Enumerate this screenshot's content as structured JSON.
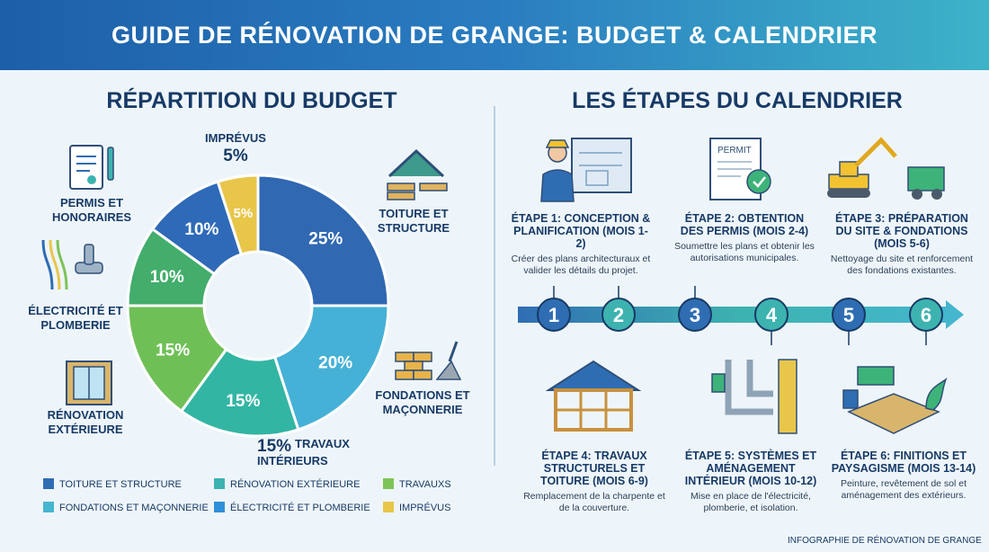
{
  "header": {
    "title": "GUIDE DE RÉNOVATION DE GRANGE: BUDGET & CALENDRIER"
  },
  "budget": {
    "title": "RÉPARTITION DU BUDGET",
    "slice_labels": {
      "toiture": "TOITURE ET STRUCTURE",
      "fondations": "FONDATIONS ET MAÇONNERIE",
      "travaux": "TRAVAUX INTÉRIEURS",
      "exterieure": "RÉNOVATION EXTÉRIEURE",
      "electricite": "ÉLECTRICITÉ ET PLOMBERIE",
      "permis": "PERMIS ET HONORAIRES",
      "imprevus": "IMPRÉVUS"
    },
    "outer_pct": {
      "imprevus": "5%",
      "travaux": "15%"
    },
    "legend": [
      {
        "label": "TOITURE ET STRUCTURE",
        "color": "#2f6db3"
      },
      {
        "label": "RÉNOVATION EXTÉRIEURE",
        "color": "#3db3b0"
      },
      {
        "label": "TRAVAUXS",
        "color": "#7cc456"
      },
      {
        "label": "FONDATIONS ET MAÇONNERIE",
        "color": "#45b6cf"
      },
      {
        "label": "ÉLECTRICITÉ ET PLOMBERIE",
        "color": "#2f8fd8"
      },
      {
        "label": "IMPRÉVUS",
        "color": "#e8c64a"
      }
    ]
  },
  "chart_data": {
    "type": "pie",
    "categories": [
      "Toiture et structure",
      "Fondations et maçonnerie",
      "Travaux intérieurs",
      "Rénovation extérieure",
      "Électricité et plomberie",
      "Permis et honoraires",
      "Imprévus"
    ],
    "values": [
      25,
      20,
      15,
      15,
      10,
      10,
      5
    ],
    "value_labels": [
      "25%",
      "20%",
      "15%",
      "15%",
      "10%",
      "10%",
      "5%"
    ],
    "colors": [
      "#3068b2",
      "#45b1d6",
      "#33b5a4",
      "#6fbf57",
      "#43ad6c",
      "#2f6ab8",
      "#e8c64a"
    ],
    "title": "RÉPARTITION DU BUDGET",
    "legend_position": "bottom"
  },
  "timeline": {
    "title": "LES ÉTAPES DU CALENDRIER",
    "numbers": [
      "1",
      "2",
      "3",
      "4",
      "5",
      "6"
    ],
    "steps": [
      {
        "title": "ÉTAPE 1: CONCEPTION & PLANIFICATION (MOIS 1-2)",
        "desc": "Créer des plans architecturaux et valider les détails du projet."
      },
      {
        "title": "ÉTAPE 2: OBTENTION DES PERMIS (MOIS 2-4)",
        "desc": "Soumettre les plans et obtenir les autorisations municipales."
      },
      {
        "title": "ÉTAPE 3: PRÉPARATION DU SITE & FONDATIONS (MOIS 5-6)",
        "desc": "Nettoyage du site et renforcement des fondations existantes."
      },
      {
        "title": "ÉTAPE 4: TRAVAUX STRUCTURELS ET TOITURE (MOIS 6-9)",
        "desc": "Remplacement de la charpente et de la couverture."
      },
      {
        "title": "ÉTAPE 5: SYSTÈMES ET AMÉNAGEMENT INTÉRIEUR (MOIS 10-12)",
        "desc": "Mise en place de l'électricité, plomberie, et isolation."
      },
      {
        "title": "ÉTAPE 6: FINITIONS ET PAYSAGISME (MOIS 13-14)",
        "desc": "Peinture, revêtement de sol et aménagement des extérieurs."
      }
    ],
    "permit_word": "PERMIT"
  },
  "footer": {
    "note": "INFOGRAPHIE DE RÉNOVATION DE GRANGE"
  }
}
